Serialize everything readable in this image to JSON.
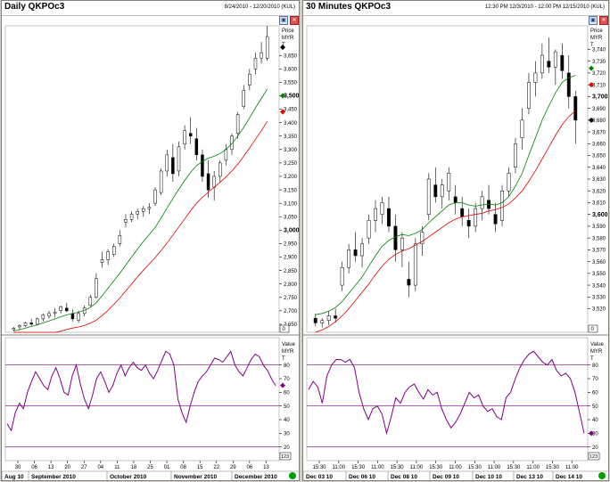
{
  "left": {
    "title": "Daily QKPOc3",
    "range": "8/24/2010 - 12/20/2010 (KUL)",
    "price_axis_head": [
      "Price",
      "MYR",
      "T"
    ],
    "value_axis_head": [
      "Value",
      "MYR",
      "T"
    ],
    "price_box": "0",
    "value_box": "123",
    "x_day_ticks": [
      "30",
      "06",
      "13",
      "20",
      "27",
      "04",
      "11",
      "18",
      "25",
      "01",
      "08",
      "15",
      "22",
      "29",
      "06",
      "13"
    ],
    "x_months": [
      "Aug 10",
      "September 2010",
      "October 2010",
      "November 2010",
      "December 2010"
    ],
    "icons": [
      "minimize-icon",
      "restore-icon",
      "close-icon"
    ]
  },
  "right": {
    "title": "30 Minutes QKPOc3",
    "range": "12:30 PM 12/3/2010 - 12:00 PM 12/15/2010 (KUL)",
    "price_axis_head": [
      "Price",
      "MYR",
      "T"
    ],
    "value_axis_head": [
      "Value",
      "MYR",
      "T"
    ],
    "price_box": "0",
    "value_box": "123",
    "x_time_ticks": [
      "15:30",
      "11:00",
      "15:30",
      "11:00",
      "15:30",
      "11:00",
      "15:30",
      "11:00",
      "15:30",
      "11:00",
      "15:30",
      "11:00",
      "15:30",
      "11:00"
    ],
    "x_days": [
      "Dec 03 10",
      "Dec 06 10",
      "Dec 08 10",
      "Dec 09 10",
      "Dec 10 10",
      "Dec 13 10",
      "Dec 14 10"
    ],
    "icons": [
      "minimize-icon",
      "restore-icon",
      "close-icon"
    ]
  },
  "chart_data": [
    {
      "type": "candlestick",
      "title": "Daily QKPOc3",
      "ylabel": "Price",
      "unit": "MYR",
      "price_ylim": [
        2620,
        3760
      ],
      "price_ticks": [
        2650,
        2700,
        2750,
        2800,
        2850,
        2900,
        2950,
        3000,
        3050,
        3100,
        3150,
        3200,
        3250,
        3300,
        3350,
        3400,
        3450,
        3500,
        3550,
        3600,
        3650,
        3700
      ],
      "price_bold_ticks": [
        3000,
        3500
      ],
      "highlight_markers": [
        {
          "value": 3680,
          "color": "#000000"
        },
        {
          "value": 3500,
          "color": "#008000"
        },
        {
          "value": 3440,
          "color": "#e00000"
        }
      ],
      "candles": [
        [
          2630,
          2640,
          2625,
          2635
        ],
        [
          2640,
          2650,
          2630,
          2645
        ],
        [
          2645,
          2660,
          2640,
          2655
        ],
        [
          2655,
          2670,
          2645,
          2650
        ],
        [
          2650,
          2675,
          2645,
          2670
        ],
        [
          2670,
          2690,
          2660,
          2685
        ],
        [
          2680,
          2700,
          2670,
          2690
        ],
        [
          2690,
          2710,
          2675,
          2695
        ],
        [
          2700,
          2720,
          2690,
          2715
        ],
        [
          2710,
          2730,
          2695,
          2700
        ],
        [
          2690,
          2705,
          2660,
          2670
        ],
        [
          2665,
          2700,
          2655,
          2690
        ],
        [
          2690,
          2720,
          2680,
          2710
        ],
        [
          2720,
          2760,
          2715,
          2750
        ],
        [
          2750,
          2840,
          2745,
          2820
        ],
        [
          2880,
          2920,
          2860,
          2890
        ],
        [
          2890,
          2930,
          2870,
          2920
        ],
        [
          2910,
          2950,
          2900,
          2940
        ],
        [
          2950,
          3000,
          2940,
          2980
        ],
        [
          3030,
          3060,
          3010,
          3040
        ],
        [
          3040,
          3070,
          3030,
          3060
        ],
        [
          3060,
          3080,
          3040,
          3070
        ],
        [
          3070,
          3090,
          3050,
          3080
        ],
        [
          3080,
          3100,
          3060,
          3085
        ],
        [
          3100,
          3160,
          3090,
          3150
        ],
        [
          3140,
          3230,
          3130,
          3220
        ],
        [
          3220,
          3300,
          3200,
          3280
        ],
        [
          3270,
          3320,
          3180,
          3210
        ],
        [
          3220,
          3330,
          3200,
          3310
        ],
        [
          3320,
          3390,
          3300,
          3370
        ],
        [
          3360,
          3420,
          3320,
          3350
        ],
        [
          3340,
          3380,
          3260,
          3280
        ],
        [
          3280,
          3300,
          3180,
          3200
        ],
        [
          3210,
          3260,
          3120,
          3150
        ],
        [
          3160,
          3220,
          3110,
          3200
        ],
        [
          3200,
          3260,
          3180,
          3250
        ],
        [
          3260,
          3320,
          3240,
          3300
        ],
        [
          3300,
          3360,
          3280,
          3350
        ],
        [
          3360,
          3440,
          3340,
          3430
        ],
        [
          3460,
          3540,
          3450,
          3520
        ],
        [
          3540,
          3600,
          3520,
          3580
        ],
        [
          3600,
          3660,
          3580,
          3640
        ],
        [
          3640,
          3700,
          3620,
          3660
        ],
        [
          3640,
          3760,
          3630,
          3720
        ]
      ],
      "ma_green": [
        2625,
        2630,
        2636,
        2642,
        2648,
        2655,
        2662,
        2670,
        2678,
        2685,
        2690,
        2695,
        2702,
        2712,
        2730,
        2756,
        2784,
        2812,
        2840,
        2870,
        2900,
        2930,
        2958,
        2984,
        3010,
        3045,
        3082,
        3118,
        3152,
        3185,
        3215,
        3240,
        3255,
        3268,
        3275,
        3285,
        3300,
        3322,
        3350,
        3382,
        3418,
        3455,
        3490,
        3525
      ],
      "ma_red": [
        2585,
        2590,
        2594,
        2598,
        2602,
        2606,
        2611,
        2617,
        2624,
        2631,
        2636,
        2640,
        2646,
        2654,
        2665,
        2682,
        2702,
        2724,
        2748,
        2774,
        2800,
        2826,
        2851,
        2875,
        2898,
        2924,
        2952,
        2982,
        3012,
        3042,
        3072,
        3100,
        3122,
        3142,
        3160,
        3178,
        3198,
        3220,
        3245,
        3275,
        3306,
        3338,
        3370,
        3405
      ],
      "indicator": {
        "ylim": [
          10,
          100
        ],
        "ticks": [
          20,
          30,
          40,
          50,
          60,
          70,
          80,
          90
        ],
        "levels": [
          20,
          50,
          80
        ],
        "values": [
          37,
          32,
          45,
          52,
          48,
          60,
          68,
          75,
          70,
          65,
          62,
          72,
          78,
          70,
          60,
          58,
          72,
          80,
          66,
          55,
          48,
          58,
          70,
          75,
          68,
          60,
          65,
          74,
          80,
          72,
          78,
          82,
          78,
          76,
          80,
          74,
          70,
          76,
          83,
          90,
          88,
          80,
          55,
          45,
          38,
          50,
          60,
          68,
          72,
          75,
          80,
          85,
          84,
          82,
          86,
          90,
          80,
          75,
          72,
          78,
          84,
          88,
          86,
          80,
          76,
          70,
          65
        ]
      }
    },
    {
      "type": "candlestick",
      "title": "30 Minutes QKPOc3",
      "ylabel": "Price",
      "unit": "MYR",
      "price_ylim": [
        3500,
        3760
      ],
      "price_ticks": [
        3520,
        3530,
        3540,
        3550,
        3560,
        3570,
        3580,
        3590,
        3600,
        3610,
        3620,
        3630,
        3640,
        3650,
        3660,
        3670,
        3680,
        3690,
        3700,
        3710,
        3720,
        3730,
        3740
      ],
      "price_bold_ticks": [
        3600,
        3700
      ],
      "highlight_markers": [
        {
          "value": 3724,
          "color": "#008000"
        },
        {
          "value": 3710,
          "color": "#e00000"
        },
        {
          "value": 3680,
          "color": "#000000"
        }
      ],
      "candles": [
        [
          3512,
          3516,
          3505,
          3508
        ],
        [
          3508,
          3512,
          3504,
          3510
        ],
        [
          3510,
          3518,
          3506,
          3514
        ],
        [
          3514,
          3520,
          3508,
          3512
        ],
        [
          3540,
          3560,
          3535,
          3555
        ],
        [
          3555,
          3575,
          3550,
          3570
        ],
        [
          3570,
          3585,
          3560,
          3565
        ],
        [
          3565,
          3580,
          3555,
          3575
        ],
        [
          3580,
          3600,
          3575,
          3595
        ],
        [
          3595,
          3612,
          3585,
          3605
        ],
        [
          3600,
          3615,
          3592,
          3610
        ],
        [
          3605,
          3615,
          3585,
          3590
        ],
        [
          3590,
          3600,
          3560,
          3570
        ],
        [
          3570,
          3585,
          3555,
          3580
        ],
        [
          3545,
          3560,
          3530,
          3540
        ],
        [
          3540,
          3580,
          3535,
          3575
        ],
        [
          3575,
          3590,
          3565,
          3585
        ],
        [
          3600,
          3635,
          3595,
          3630
        ],
        [
          3625,
          3640,
          3610,
          3615
        ],
        [
          3615,
          3630,
          3605,
          3625
        ],
        [
          3620,
          3640,
          3612,
          3635
        ],
        [
          3615,
          3625,
          3600,
          3610
        ],
        [
          3605,
          3615,
          3590,
          3598
        ],
        [
          3595,
          3605,
          3580,
          3590
        ],
        [
          3590,
          3610,
          3585,
          3605
        ],
        [
          3605,
          3620,
          3595,
          3615
        ],
        [
          3612,
          3625,
          3600,
          3605
        ],
        [
          3600,
          3610,
          3585,
          3592
        ],
        [
          3595,
          3625,
          3590,
          3620
        ],
        [
          3620,
          3640,
          3615,
          3635
        ],
        [
          3640,
          3665,
          3635,
          3660
        ],
        [
          3665,
          3690,
          3655,
          3680
        ],
        [
          3690,
          3720,
          3685,
          3712
        ],
        [
          3712,
          3730,
          3700,
          3720
        ],
        [
          3720,
          3745,
          3715,
          3735
        ],
        [
          3730,
          3750,
          3720,
          3725
        ],
        [
          3725,
          3740,
          3710,
          3738
        ],
        [
          3735,
          3745,
          3715,
          3722
        ],
        [
          3720,
          3735,
          3690,
          3700
        ],
        [
          3700,
          3705,
          3660,
          3680
        ]
      ],
      "ma_green": [
        3515,
        3516,
        3518,
        3521,
        3526,
        3533,
        3540,
        3547,
        3556,
        3565,
        3573,
        3578,
        3581,
        3583,
        3582,
        3584,
        3587,
        3593,
        3598,
        3603,
        3608,
        3610,
        3610,
        3608,
        3607,
        3608,
        3609,
        3608,
        3610,
        3615,
        3624,
        3635,
        3650,
        3665,
        3680,
        3692,
        3703,
        3712,
        3716,
        3718
      ],
      "ma_red": [
        3500,
        3502,
        3505,
        3509,
        3514,
        3520,
        3527,
        3534,
        3541,
        3549,
        3556,
        3562,
        3566,
        3569,
        3571,
        3574,
        3577,
        3581,
        3585,
        3589,
        3593,
        3596,
        3598,
        3599,
        3600,
        3601,
        3603,
        3604,
        3606,
        3609,
        3614,
        3620,
        3628,
        3637,
        3647,
        3657,
        3667,
        3676,
        3683,
        3688
      ],
      "indicator": {
        "ylim": [
          10,
          100
        ],
        "ticks": [
          20,
          30,
          40,
          50,
          60,
          70,
          80,
          90
        ],
        "levels": [
          20,
          50,
          80
        ],
        "values": [
          62,
          68,
          64,
          52,
          72,
          80,
          84,
          84,
          82,
          84,
          78,
          60,
          48,
          40,
          48,
          50,
          44,
          30,
          42,
          56,
          52,
          60,
          64,
          66,
          60,
          55,
          62,
          58,
          60,
          48,
          40,
          34,
          38,
          44,
          52,
          60,
          56,
          58,
          50,
          46,
          48,
          42,
          40,
          56,
          60,
          70,
          78,
          84,
          88,
          90,
          86,
          82,
          80,
          84,
          76,
          72,
          74,
          70,
          60,
          45,
          30
        ]
      }
    }
  ]
}
